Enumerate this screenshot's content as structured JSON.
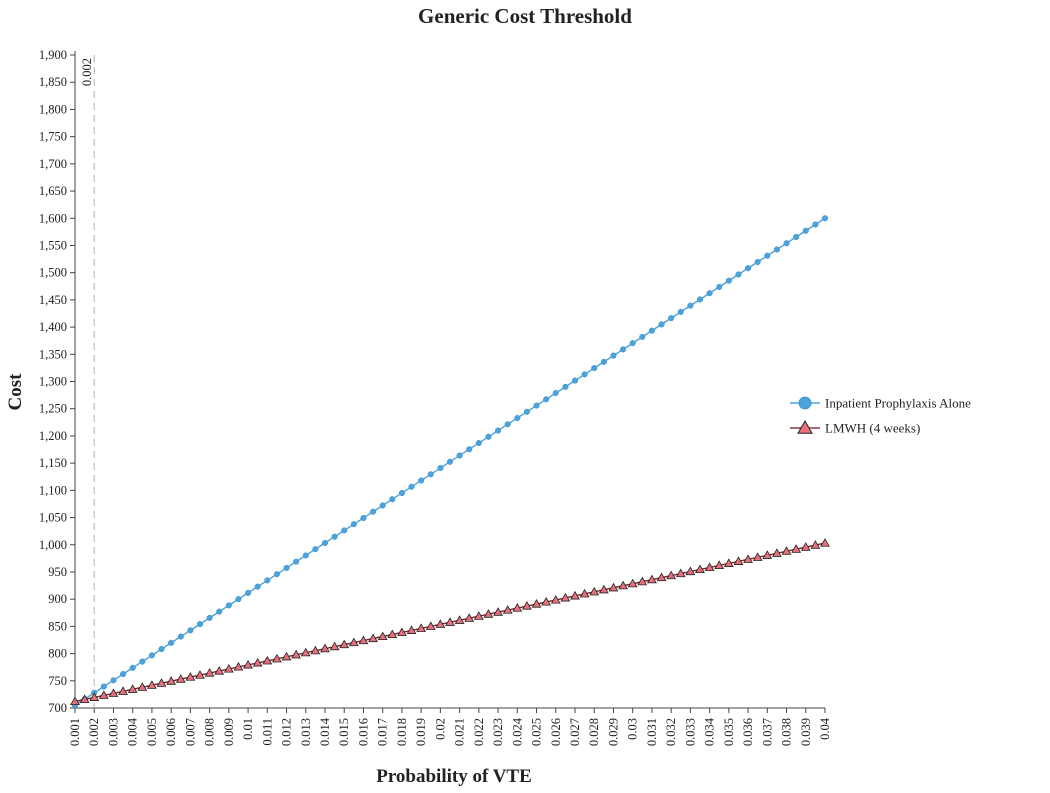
{
  "chart_data": {
    "type": "line",
    "title": "Generic Cost Threshold",
    "xlabel": "Probability of VTE",
    "ylabel": "Cost",
    "ylim": [
      700,
      1900
    ],
    "y_ticks": [
      "700",
      "750",
      "800",
      "850",
      "900",
      "950",
      "1,000",
      "1,050",
      "1,100",
      "1,150",
      "1,200",
      "1,250",
      "1,300",
      "1,350",
      "1,400",
      "1,450",
      "1,500",
      "1,550",
      "1,600",
      "1,650",
      "1,700",
      "1,750",
      "1,800",
      "1,850",
      "1,900"
    ],
    "x_ticks": [
      "0.001",
      "0.002",
      "0.003",
      "0.004",
      "0.005",
      "0.006",
      "0.007",
      "0.008",
      "0.009",
      "0.01",
      "0.011",
      "0.012",
      "0.013",
      "0.014",
      "0.015",
      "0.016",
      "0.017",
      "0.018",
      "0.019",
      "0.02",
      "0.021",
      "0.022",
      "0.023",
      "0.024",
      "0.025",
      "0.026",
      "0.027",
      "0.028",
      "0.029",
      "0.03",
      "0.031",
      "0.032",
      "0.033",
      "0.034",
      "0.035",
      "0.036",
      "0.037",
      "0.038",
      "0.039",
      "0.04"
    ],
    "x_range": [
      0.001,
      0.04
    ],
    "threshold": {
      "x": 0.002,
      "label": "0.002"
    },
    "series": [
      {
        "name": "Inpatient Prophylaxis Alone",
        "marker": "circle",
        "color": "#4aa3da",
        "x": [
          0.001,
          0.04
        ],
        "y": [
          705,
          1600
        ]
      },
      {
        "name": "LMWH (4 weeks)",
        "marker": "triangle",
        "color": "#e8707a",
        "x": [
          0.001,
          0.04
        ],
        "y": [
          712,
          1003
        ]
      }
    ],
    "points_per_series": 79,
    "grid": false,
    "legend_position": "right"
  }
}
